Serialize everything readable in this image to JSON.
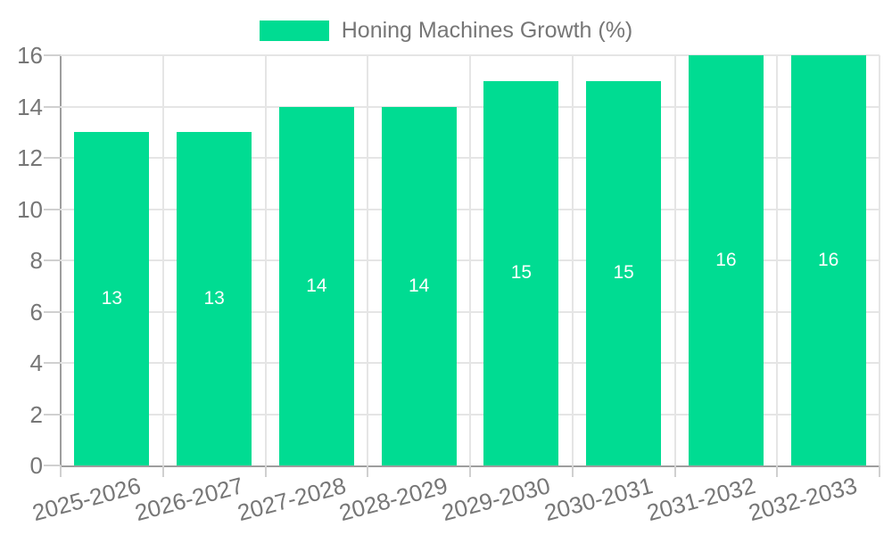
{
  "legend": {
    "label": "Honing Machines Growth (%)"
  },
  "colors": {
    "bar": "#00dc92",
    "axis_text": "#767676",
    "grid": "#e5e5e5",
    "axis_line": "#9e9e9e",
    "tick": "#d0d0d0",
    "bar_label": "#ffffff",
    "background": "#ffffff"
  },
  "chart_data": {
    "type": "bar",
    "title": "",
    "series_name": "Honing Machines Growth (%)",
    "categories": [
      "2025-2026",
      "2026-2027",
      "2027-2028",
      "2028-2029",
      "2029-2030",
      "2030-2031",
      "2031-2032",
      "2032-2033"
    ],
    "values": [
      13,
      13,
      14,
      14,
      15,
      15,
      16,
      16
    ],
    "bar_labels": [
      13,
      13,
      14,
      14,
      15,
      15,
      16,
      16
    ],
    "xlabel": "",
    "ylabel": "",
    "ylim": [
      0,
      16
    ],
    "yticks": [
      0,
      2,
      4,
      6,
      8,
      10,
      12,
      14,
      16
    ],
    "grid": true,
    "legend_position": "top",
    "bar_label_position": "center",
    "x_label_rotation_deg": -15
  }
}
